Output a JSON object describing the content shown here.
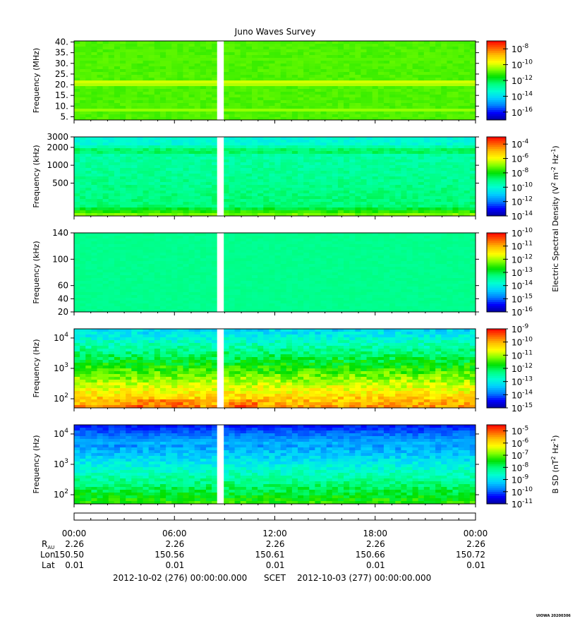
{
  "title": "Juno Waves Survey",
  "stamp": "UIOWA 20200306",
  "colormap": [
    "#0000a0",
    "#0000ff",
    "#0080ff",
    "#00d0ff",
    "#00ffd0",
    "#00ff80",
    "#00e000",
    "#80ff00",
    "#ffff00",
    "#ffc000",
    "#ff6000",
    "#ff0000"
  ],
  "gap": {
    "start_hour": 8.55,
    "end_hour": 8.95
  },
  "chart_data": [
    {
      "type": "heatmap",
      "panel": "hfr-high",
      "ylabel": "Frequency (MHz)",
      "yscale": "linear",
      "ylim": [
        3.5,
        40.5
      ],
      "yticks": [
        {
          "v": 40,
          "label": "40."
        },
        {
          "v": 35,
          "label": "35."
        },
        {
          "v": 30,
          "label": "30."
        },
        {
          "v": 25,
          "label": "25."
        },
        {
          "v": 20,
          "label": "20."
        },
        {
          "v": 15,
          "label": "15."
        },
        {
          "v": 10,
          "label": "10."
        },
        {
          "v": 5,
          "label": "5."
        }
      ],
      "base_level": 0.6,
      "bands": [
        {
          "at": 0.47,
          "level": 0.72
        },
        {
          "at": 0.13,
          "level": 0.66
        },
        {
          "at": 0.78,
          "level": 0.63
        }
      ],
      "colorbar": {
        "min_exp": -17,
        "max_exp": -7,
        "ticks": [
          -8,
          -10,
          -12,
          -14,
          -16
        ]
      }
    },
    {
      "type": "heatmap",
      "panel": "hfr-low",
      "ylabel": "Frequency (kHz)",
      "yscale": "log",
      "ylim": [
        140,
        3000
      ],
      "yticks": [
        {
          "v": 3000,
          "label": "3000"
        },
        {
          "v": 2000,
          "label": "2000"
        },
        {
          "v": 1000,
          "label": "1000"
        },
        {
          "v": 500,
          "label": "500"
        }
      ],
      "base_level": 0.47,
      "colorbar": {
        "min_exp": -14,
        "max_exp": -3,
        "ticks": [
          -4,
          -6,
          -8,
          -10,
          -12,
          -14
        ]
      }
    },
    {
      "type": "heatmap",
      "panel": "lfr-high",
      "ylabel": "Frequency (kHz)",
      "yscale": "linear",
      "ylim": [
        20,
        140
      ],
      "yticks": [
        {
          "v": 140,
          "label": "140"
        },
        {
          "v": 100,
          "label": "100"
        },
        {
          "v": 60,
          "label": "60"
        },
        {
          "v": 40,
          "label": "40"
        },
        {
          "v": 20,
          "label": "20"
        }
      ],
      "base_level": 0.44,
      "colorbar": {
        "min_exp": -16,
        "max_exp": -10,
        "ticks": [
          -10,
          -11,
          -12,
          -13,
          -14,
          -15,
          -16
        ]
      }
    },
    {
      "type": "heatmap",
      "panel": "lfr-low-e",
      "ylabel": "Frequency (Hz)",
      "yscale": "log",
      "ylim": [
        50,
        20000
      ],
      "yticks": [
        {
          "v": 10000,
          "base": "10",
          "exp": "4"
        },
        {
          "v": 1000,
          "base": "10",
          "exp": "3"
        },
        {
          "v": 100,
          "base": "10",
          "exp": "2"
        }
      ],
      "colorbar": {
        "min_exp": -15,
        "max_exp": -9,
        "ticks": [
          -9,
          -10,
          -11,
          -12,
          -13,
          -14,
          -15
        ]
      }
    },
    {
      "type": "heatmap",
      "panel": "lfr-low-b",
      "ylabel": "Frequency (Hz)",
      "yscale": "log",
      "ylim": [
        50,
        20000
      ],
      "yticks": [
        {
          "v": 10000,
          "base": "10",
          "exp": "4"
        },
        {
          "v": 1000,
          "base": "10",
          "exp": "3"
        },
        {
          "v": 100,
          "base": "10",
          "exp": "2"
        }
      ],
      "colorbar": {
        "min_exp": -11,
        "max_exp": -4.5,
        "ticks": [
          -5,
          -6,
          -7,
          -8,
          -9,
          -10,
          -11
        ]
      }
    }
  ],
  "electric_label": {
    "text": "Electric Spectral Density (V",
    "sup1": "2",
    "mid": " m",
    "sup2": "-2",
    "mid2": " Hz",
    "sup3": "-1",
    "end": ")"
  },
  "magnetic_label": {
    "text": "B SD (nT",
    "sup1": "2",
    "mid": " Hz",
    "sup2": "-1",
    "end": ")"
  },
  "time_axis": {
    "range_hours": [
      0,
      24
    ],
    "ticks": [
      {
        "hour": 0,
        "time": "00:00",
        "r": "2.26",
        "lon": "150.50",
        "lat": "0.01"
      },
      {
        "hour": 6,
        "time": "06:00",
        "r": "2.26",
        "lon": "150.56",
        "lat": "0.01"
      },
      {
        "hour": 12,
        "time": "12:00",
        "r": "2.26",
        "lon": "150.61",
        "lat": "0.01"
      },
      {
        "hour": 18,
        "time": "18:00",
        "r": "2.26",
        "lon": "150.66",
        "lat": "0.01"
      },
      {
        "hour": 24,
        "time": "00:00",
        "r": "2.26",
        "lon": "150.72",
        "lat": "0.01"
      }
    ],
    "row_labels": {
      "r": "R",
      "r_sub": "AU",
      "lon": "Lon",
      "lat": "Lat"
    },
    "start_label": "2012-10-02 (276) 00:00:00.000",
    "frame_label": "SCET",
    "end_label": "2012-10-03 (277) 00:00:00.000"
  }
}
